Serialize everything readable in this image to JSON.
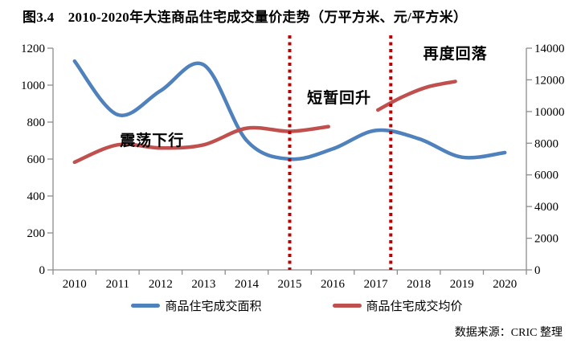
{
  "title": "图3.4　2010-2020年大连商品住宅成交量价走势（万平方米、元/平方米）",
  "source": "数据来源：CRIC 整理",
  "colors": {
    "area_series": "#4F81BD",
    "price_series": "#C0504D",
    "divider": "#C00000",
    "axis": "#8C8C8C",
    "text": "#000000"
  },
  "legend": [
    {
      "label": "商品住宅成交面积",
      "color": "#4F81BD"
    },
    {
      "label": "商品住宅成交均价",
      "color": "#C0504D"
    }
  ],
  "chart_data": {
    "type": "line",
    "x_categories": [
      2010,
      2011,
      2012,
      2013,
      2014,
      2015,
      2016,
      2017,
      2018,
      2019,
      2020
    ],
    "left_axis": {
      "min": 0,
      "max": 1200,
      "step": 200,
      "ticks": [
        0,
        200,
        400,
        600,
        800,
        1000,
        1200
      ],
      "unit": "万平方米"
    },
    "right_axis": {
      "min": 0,
      "max": 14000,
      "step": 2000,
      "ticks": [
        0,
        2000,
        4000,
        6000,
        8000,
        10000,
        12000,
        14000
      ],
      "unit": "元/平方米"
    },
    "grid": false,
    "legend_position": "bottom",
    "series": [
      {
        "name": "商品住宅成交面积",
        "axis": "left",
        "color": "#4F81BD",
        "segments": [
          [
            [
              2010,
              1130
            ],
            [
              2011,
              840
            ],
            [
              2012,
              970
            ],
            [
              2013,
              1110
            ],
            [
              2014,
              700
            ],
            [
              2015,
              600
            ],
            [
              2016,
              655
            ],
            [
              2017,
              755
            ],
            [
              2018,
              710
            ],
            [
              2019,
              610
            ],
            [
              2020,
              635
            ]
          ]
        ]
      },
      {
        "name": "商品住宅成交均价",
        "axis": "right",
        "color": "#C0504D",
        "segments": [
          [
            [
              2010,
              6800
            ],
            [
              2011,
              7900
            ],
            [
              2012,
              7700
            ],
            [
              2013,
              7900
            ],
            [
              2014,
              8950
            ],
            [
              2015,
              8750
            ],
            [
              2015.9,
              9050
            ]
          ],
          [
            [
              2017.05,
              10100
            ],
            [
              2017.6,
              10900
            ],
            [
              2018.2,
              11550
            ],
            [
              2018.85,
              11900
            ]
          ]
        ]
      }
    ],
    "dividers": [
      {
        "x": 2015.0
      },
      {
        "x": 2017.35
      }
    ],
    "annotations": [
      {
        "text": "震荡下行",
        "x": 2011.8,
        "y": 700
      },
      {
        "text": "短暂回升",
        "x": 2016.15,
        "y": 930
      },
      {
        "text": "再度回落",
        "x": 2018.85,
        "y": 1170
      }
    ]
  }
}
